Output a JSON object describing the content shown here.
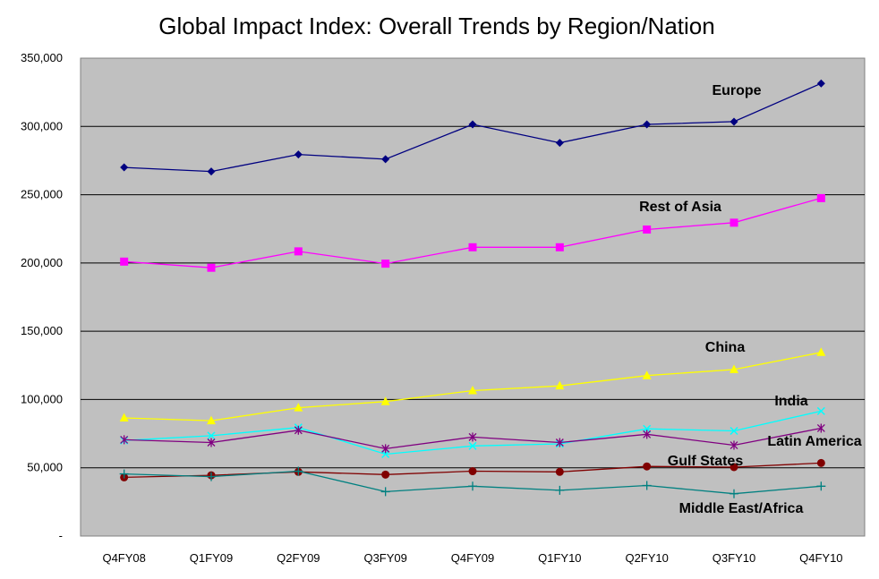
{
  "chart_data": {
    "type": "line",
    "title": "Global Impact Index: Overall Trends by Region/Nation",
    "xlabel": "",
    "ylabel": "",
    "categories": [
      "Q4FY08",
      "Q1FY09",
      "Q2FY09",
      "Q3FY09",
      "Q4FY09",
      "Q1FY10",
      "Q2FY10",
      "Q3FY10",
      "Q4FY10"
    ],
    "ylim": [
      0,
      350000
    ],
    "yticks": [
      {
        "value": 0,
        "label": "-"
      },
      {
        "value": 50000,
        "label": "50,000"
      },
      {
        "value": 100000,
        "label": "100,000"
      },
      {
        "value": 150000,
        "label": "150,000"
      },
      {
        "value": 200000,
        "label": "200,000"
      },
      {
        "value": 250000,
        "label": "250,000"
      },
      {
        "value": 300000,
        "label": "300,000"
      },
      {
        "value": 350000,
        "label": "350,000"
      }
    ],
    "grid": "horizontal",
    "plot_background": "#C0C0C0",
    "series": [
      {
        "name": "Europe",
        "color": "#000080",
        "marker": "diamond",
        "values": [
          270000,
          267000,
          279500,
          276000,
          301500,
          288000,
          301500,
          303500,
          331500
        ]
      },
      {
        "name": "Rest of Asia",
        "color": "#FF00FF",
        "marker": "square",
        "values": [
          201000,
          196500,
          208500,
          199500,
          211500,
          211500,
          224500,
          229500,
          247500
        ]
      },
      {
        "name": "China",
        "color": "#FFFF00",
        "marker": "triangle",
        "values": [
          86500,
          84500,
          94000,
          98500,
          106500,
          110000,
          117500,
          122000,
          134500
        ]
      },
      {
        "name": "India",
        "color": "#00FFFF",
        "marker": "x",
        "values": [
          70000,
          73500,
          79500,
          60000,
          66000,
          67500,
          78500,
          77000,
          91500
        ]
      },
      {
        "name": "Latin America",
        "color": "#800080",
        "marker": "star",
        "values": [
          70500,
          68500,
          77500,
          64000,
          72500,
          68500,
          74500,
          66500,
          79000
        ]
      },
      {
        "name": "Gulf States",
        "color": "#800000",
        "marker": "circle",
        "values": [
          43000,
          44500,
          47000,
          45000,
          47500,
          47000,
          51000,
          50500,
          53500
        ]
      },
      {
        "name": "Middle East/Africa",
        "color": "#008080",
        "marker": "plus",
        "values": [
          45500,
          43500,
          47500,
          32500,
          36500,
          33500,
          37000,
          31000,
          36500
        ]
      }
    ]
  }
}
